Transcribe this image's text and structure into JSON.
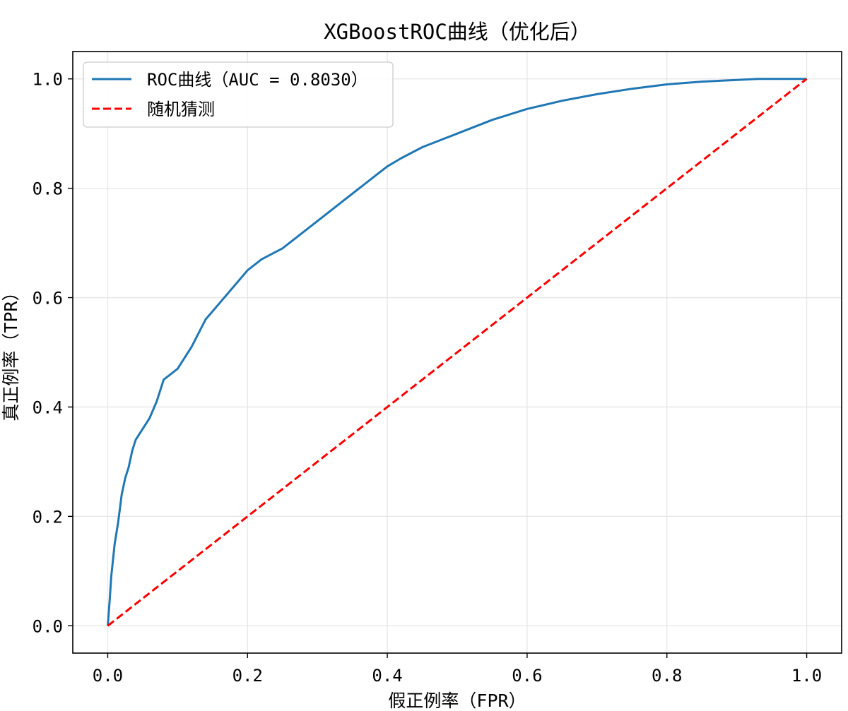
{
  "chart_data": {
    "type": "line",
    "title": "XGBoostROC曲线（优化后）",
    "xlabel": "假正例率（FPR）",
    "ylabel": "真正例率（TPR）",
    "xlim": [
      -0.05,
      1.05
    ],
    "ylim": [
      -0.05,
      1.05
    ],
    "xticks": [
      "0.0",
      "0.2",
      "0.4",
      "0.6",
      "0.8",
      "1.0"
    ],
    "yticks": [
      "0.0",
      "0.2",
      "0.4",
      "0.6",
      "0.8",
      "1.0"
    ],
    "grid": true,
    "legend_position": "top-left",
    "series": [
      {
        "name": "ROC曲线（AUC = 0.8030）",
        "color": "#1f77b4",
        "style": "solid",
        "x": [
          0.0,
          0.003,
          0.005,
          0.01,
          0.015,
          0.02,
          0.025,
          0.03,
          0.035,
          0.04,
          0.05,
          0.055,
          0.06,
          0.07,
          0.08,
          0.09,
          0.1,
          0.12,
          0.14,
          0.16,
          0.18,
          0.2,
          0.22,
          0.25,
          0.28,
          0.3,
          0.32,
          0.34,
          0.36,
          0.38,
          0.4,
          0.42,
          0.45,
          0.48,
          0.5,
          0.55,
          0.6,
          0.65,
          0.7,
          0.75,
          0.8,
          0.85,
          0.9,
          0.93,
          0.96,
          1.0
        ],
        "y": [
          0.0,
          0.05,
          0.09,
          0.15,
          0.19,
          0.24,
          0.27,
          0.29,
          0.32,
          0.34,
          0.36,
          0.37,
          0.38,
          0.41,
          0.45,
          0.46,
          0.47,
          0.51,
          0.56,
          0.59,
          0.62,
          0.65,
          0.67,
          0.69,
          0.72,
          0.74,
          0.76,
          0.78,
          0.8,
          0.82,
          0.84,
          0.855,
          0.875,
          0.89,
          0.9,
          0.925,
          0.945,
          0.96,
          0.972,
          0.982,
          0.99,
          0.995,
          0.998,
          1.0,
          1.0,
          1.0
        ]
      },
      {
        "name": "随机猜测",
        "color": "#ff0000",
        "style": "dashed",
        "x": [
          0.0,
          1.0
        ],
        "y": [
          0.0,
          1.0
        ]
      }
    ]
  }
}
